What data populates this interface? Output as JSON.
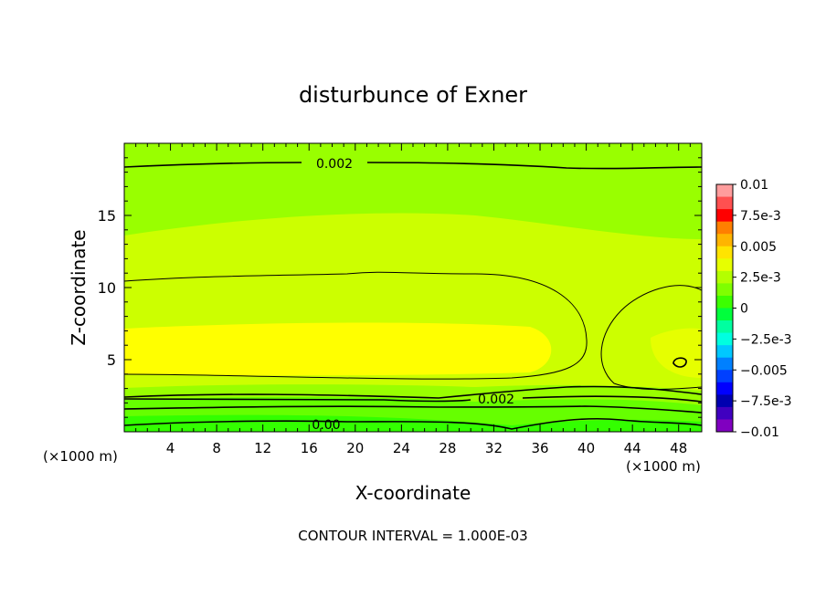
{
  "chart_data": {
    "type": "contour",
    "title": "disturbunce of Exner",
    "xlabel": "X-coordinate",
    "ylabel": "Z-coordinate",
    "x_unit": "(×1000 m)",
    "xlim": [
      0,
      50
    ],
    "ylim": [
      0,
      20
    ],
    "x_ticks": [
      4,
      8,
      12,
      16,
      20,
      24,
      28,
      32,
      36,
      40,
      44,
      48
    ],
    "y_ticks": [
      5,
      10,
      15
    ],
    "footer": "CONTOUR INTERVAL = 1.000E-03",
    "contour_labels": [
      {
        "text": "0.002",
        "x": 18,
        "z": 18.3
      },
      {
        "text": "0.002",
        "x": 32,
        "z": 2.3
      },
      {
        "text": "0.00",
        "x": 17,
        "z": 0.5
      }
    ],
    "colorbar": {
      "labels": [
        "0.01",
        "7.5e-3",
        "0.005",
        "2.5e-3",
        "0",
        "−2.5e-3",
        "−0.005",
        "−7.5e-3",
        "−0.01"
      ],
      "colors": [
        "#ff9d9d",
        "#ff5050",
        "#ff0000",
        "#ff7f00",
        "#ffb400",
        "#ffe400",
        "#e7ff00",
        "#b4ff00",
        "#7fff00",
        "#3cff00",
        "#00ff3c",
        "#00ffa0",
        "#00ffe0",
        "#00c8ff",
        "#0080ff",
        "#0040ff",
        "#0000ff",
        "#0000b0",
        "#4000c0",
        "#8000c0"
      ]
    }
  }
}
